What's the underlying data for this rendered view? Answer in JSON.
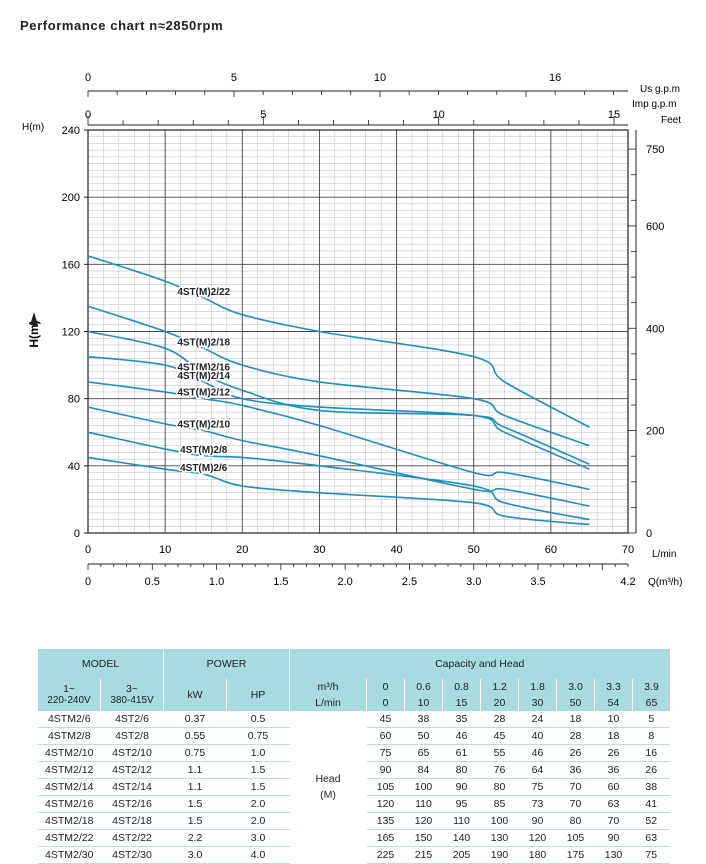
{
  "title": "Performance chart n≈2850rpm",
  "colors": {
    "curve": "#1a8fc2",
    "grid": "#444444",
    "minor_grid": "#bbbbbb",
    "table_header": "#a8dbe0"
  },
  "chart_data": {
    "type": "line",
    "title": "Performance chart n≈2850rpm",
    "xlabel": "L/min",
    "ylabel": "H(m)",
    "xlim": [
      0,
      70
    ],
    "ylim": [
      0,
      240
    ],
    "grid": true,
    "x_ticks": [
      "0",
      "10",
      "20",
      "30",
      "40",
      "50",
      "60",
      "70"
    ],
    "y_ticks": [
      "0",
      "40",
      "80",
      "120",
      "160",
      "200",
      "240"
    ],
    "y_axis_unit": "H(m)",
    "secondary_axes": {
      "us_gpm": {
        "label": "Us g.p.m",
        "ticks": [
          "0",
          "5",
          "10",
          "16"
        ],
        "values": [
          0,
          5,
          10,
          16
        ]
      },
      "imp_gpm": {
        "label": "Imp g.p.m",
        "ticks": [
          "0",
          "5",
          "10",
          "15"
        ],
        "values": [
          0,
          5,
          10,
          15
        ]
      },
      "feet": {
        "label": "Feet",
        "ticks": [
          "0",
          "200",
          "400",
          "600",
          "750"
        ],
        "values": [
          0,
          200,
          400,
          600,
          750
        ]
      },
      "m3h": {
        "label": "Q(m³/h)",
        "ticks": [
          "0",
          "0.5",
          "1.0",
          "1.5",
          "2.0",
          "2.5",
          "3.0",
          "3.5",
          "4.2"
        ],
        "values": [
          0,
          0.5,
          1.0,
          1.5,
          2.0,
          2.5,
          3.0,
          3.5,
          4.2
        ]
      }
    },
    "series": [
      {
        "name": "4ST(M)2/22",
        "x": [
          0,
          10,
          15,
          20,
          30,
          50,
          54,
          65
        ],
        "y": [
          165,
          150,
          140,
          130,
          120,
          105,
          90,
          63
        ]
      },
      {
        "name": "4ST(M)2/18",
        "x": [
          0,
          10,
          15,
          20,
          30,
          50,
          54,
          65
        ],
        "y": [
          135,
          120,
          110,
          100,
          90,
          80,
          70,
          52
        ]
      },
      {
        "name": "4ST(M)2/16",
        "x": [
          0,
          10,
          15,
          20,
          30,
          50,
          54,
          65
        ],
        "y": [
          120,
          110,
          95,
          85,
          73,
          70,
          63,
          41
        ]
      },
      {
        "name": "4ST(M)2/14",
        "x": [
          0,
          10,
          15,
          20,
          30,
          50,
          54,
          65
        ],
        "y": [
          105,
          100,
          90,
          80,
          75,
          70,
          60,
          38
        ]
      },
      {
        "name": "4ST(M)2/12",
        "x": [
          0,
          10,
          15,
          20,
          30,
          50,
          54,
          65
        ],
        "y": [
          90,
          84,
          80,
          76,
          64,
          36,
          36,
          26
        ]
      },
      {
        "name": "4ST(M)2/10",
        "x": [
          0,
          10,
          15,
          20,
          30,
          50,
          54,
          65
        ],
        "y": [
          75,
          65,
          61,
          55,
          46,
          26,
          26,
          16
        ]
      },
      {
        "name": "4ST(M)2/8",
        "x": [
          0,
          10,
          15,
          20,
          30,
          50,
          54,
          65
        ],
        "y": [
          60,
          50,
          46,
          45,
          40,
          28,
          18,
          8
        ]
      },
      {
        "name": "4ST(M)2/6",
        "x": [
          0,
          10,
          15,
          20,
          30,
          50,
          54,
          65
        ],
        "y": [
          45,
          38,
          35,
          28,
          24,
          18,
          10,
          5
        ]
      }
    ]
  },
  "table": {
    "headers": {
      "model": "MODEL",
      "power": "POWER",
      "capacity": "Capacity and Head",
      "single_phase": "1~\n220-240V",
      "three_phase": "3~\n380-415V",
      "kw": "kW",
      "hp": "HP",
      "m3h_unit": "m³/h",
      "lmin_unit": "L/min"
    },
    "m3h": [
      "0",
      "0.6",
      "0.8",
      "1.2",
      "1.8",
      "3.0",
      "3.3",
      "3.9"
    ],
    "lmin": [
      "0",
      "10",
      "15",
      "20",
      "30",
      "50",
      "54",
      "65"
    ],
    "head_label": "Head",
    "head_unit": "(M)",
    "rows": [
      {
        "m1": "4STM2/6",
        "m3": "4ST2/6",
        "kw": "0.37",
        "hp": "0.5",
        "head": [
          "45",
          "38",
          "35",
          "28",
          "24",
          "18",
          "10",
          "5"
        ]
      },
      {
        "m1": "4STM2/8",
        "m3": "4ST2/8",
        "kw": "0.55",
        "hp": "0.75",
        "head": [
          "60",
          "50",
          "46",
          "45",
          "40",
          "28",
          "18",
          "8"
        ]
      },
      {
        "m1": "4STM2/10",
        "m3": "4ST2/10",
        "kw": "0.75",
        "hp": "1.0",
        "head": [
          "75",
          "65",
          "61",
          "55",
          "46",
          "26",
          "26",
          "16"
        ]
      },
      {
        "m1": "4STM2/12",
        "m3": "4ST2/12",
        "kw": "1.1",
        "hp": "1.5",
        "head": [
          "90",
          "84",
          "80",
          "76",
          "64",
          "36",
          "36",
          "26"
        ]
      },
      {
        "m1": "4STM2/14",
        "m3": "4ST2/14",
        "kw": "1.1",
        "hp": "1.5",
        "head": [
          "105",
          "100",
          "90",
          "80",
          "75",
          "70",
          "60",
          "38"
        ]
      },
      {
        "m1": "4STM2/16",
        "m3": "4ST2/16",
        "kw": "1.5",
        "hp": "2.0",
        "head": [
          "120",
          "110",
          "95",
          "85",
          "73",
          "70",
          "63",
          "41"
        ]
      },
      {
        "m1": "4STM2/18",
        "m3": "4ST2/18",
        "kw": "1.5",
        "hp": "2.0",
        "head": [
          "135",
          "120",
          "110",
          "100",
          "90",
          "80",
          "70",
          "52"
        ]
      },
      {
        "m1": "4STM2/22",
        "m3": "4ST2/22",
        "kw": "2.2",
        "hp": "3.0",
        "head": [
          "165",
          "150",
          "140",
          "130",
          "120",
          "105",
          "90",
          "63"
        ]
      },
      {
        "m1": "4STM2/30",
        "m3": "4ST2/30",
        "kw": "3.0",
        "hp": "4.0",
        "head": [
          "225",
          "215",
          "205",
          "190",
          "180",
          "175",
          "130",
          "75"
        ]
      }
    ]
  }
}
